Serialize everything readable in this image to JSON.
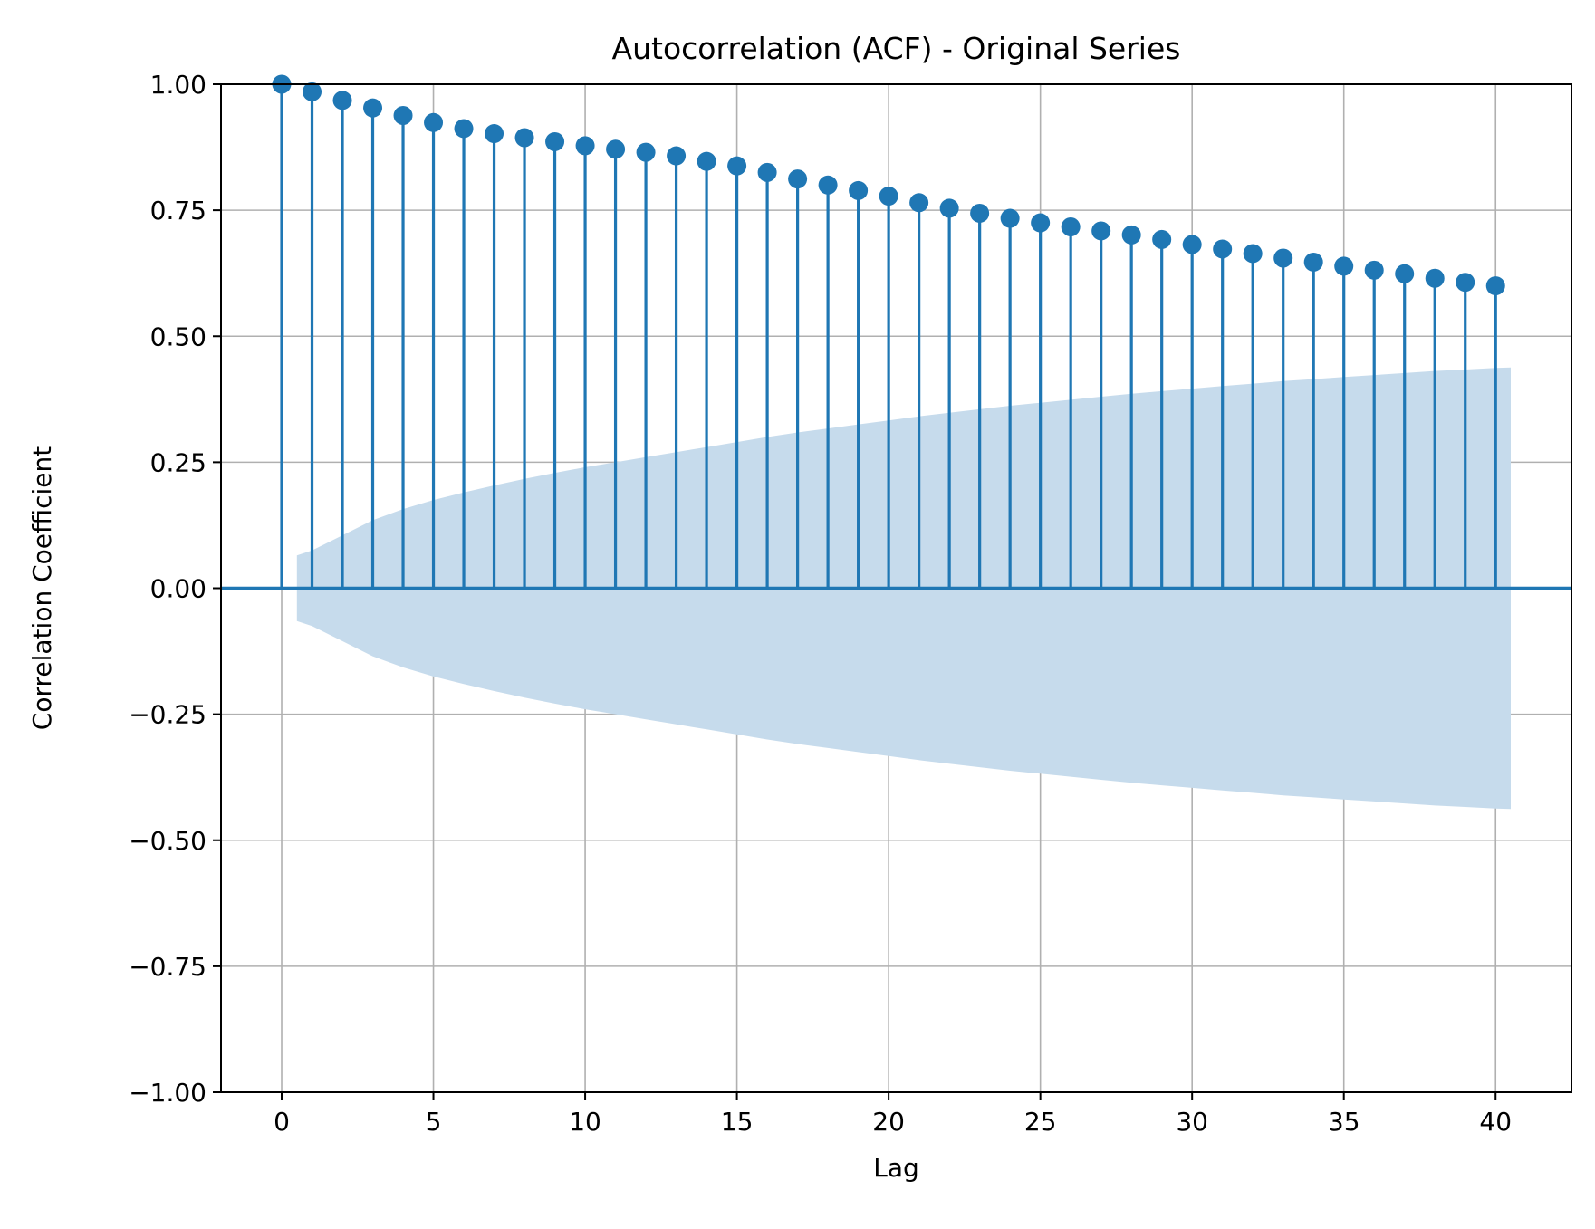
{
  "chart_data": {
    "type": "stem",
    "title": "Autocorrelation (ACF) - Original Series",
    "xlabel": "Lag",
    "ylabel": "Correlation Coefficient",
    "xlim": [
      -2.0,
      42.5
    ],
    "ylim": [
      -1.0,
      1.0
    ],
    "xticks": [
      0,
      5,
      10,
      15,
      20,
      25,
      30,
      35,
      40
    ],
    "xtick_labels": [
      "0",
      "5",
      "10",
      "15",
      "20",
      "25",
      "30",
      "35",
      "40"
    ],
    "yticks": [
      -1.0,
      -0.75,
      -0.5,
      -0.25,
      0.0,
      0.25,
      0.5,
      0.75,
      1.0
    ],
    "ytick_labels": [
      "−1.00",
      "−0.75",
      "−0.50",
      "−0.25",
      "0.00",
      "0.25",
      "0.50",
      "0.75",
      "1.00"
    ],
    "grid": true,
    "color": "#1f77b4",
    "band_color": "#c6dbec",
    "series": [
      {
        "lags": [
          0,
          1,
          2,
          3,
          4,
          5,
          6,
          7,
          8,
          9,
          10,
          11,
          12,
          13,
          14,
          15,
          16,
          17,
          18,
          19,
          20,
          21,
          22,
          23,
          24,
          25,
          26,
          27,
          28,
          29,
          30,
          31,
          32,
          33,
          34,
          35,
          36,
          37,
          38,
          39,
          40
        ],
        "values": [
          1.0,
          0.985,
          0.968,
          0.953,
          0.938,
          0.924,
          0.912,
          0.902,
          0.894,
          0.886,
          0.878,
          0.871,
          0.865,
          0.858,
          0.847,
          0.838,
          0.825,
          0.812,
          0.8,
          0.789,
          0.778,
          0.765,
          0.754,
          0.744,
          0.734,
          0.725,
          0.717,
          0.709,
          0.701,
          0.692,
          0.682,
          0.673,
          0.664,
          0.655,
          0.647,
          0.639,
          0.631,
          0.624,
          0.615,
          0.607,
          0.6
        ]
      }
    ],
    "confidence_band": {
      "x": [
        0.5,
        1,
        2,
        3,
        4,
        5,
        6,
        7,
        8,
        9,
        10,
        11,
        12,
        13,
        14,
        15,
        16,
        17,
        18,
        19,
        20,
        21,
        22,
        23,
        24,
        25,
        26,
        27,
        28,
        29,
        30,
        31,
        32,
        33,
        34,
        35,
        36,
        37,
        38,
        39,
        40,
        40.5
      ],
      "upper": [
        0.065,
        0.075,
        0.105,
        0.135,
        0.157,
        0.175,
        0.19,
        0.204,
        0.217,
        0.229,
        0.24,
        0.25,
        0.26,
        0.27,
        0.28,
        0.29,
        0.3,
        0.309,
        0.317,
        0.325,
        0.333,
        0.341,
        0.348,
        0.355,
        0.362,
        0.368,
        0.374,
        0.38,
        0.386,
        0.391,
        0.396,
        0.401,
        0.406,
        0.411,
        0.415,
        0.419,
        0.423,
        0.427,
        0.431,
        0.434,
        0.437,
        0.438
      ]
    }
  }
}
